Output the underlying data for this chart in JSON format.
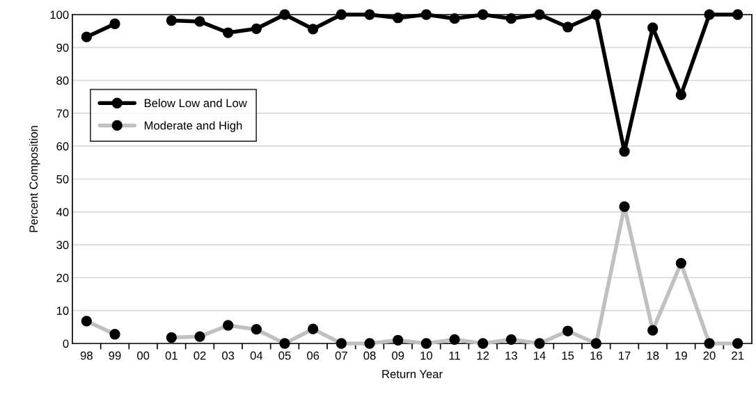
{
  "chart_data": {
    "type": "line",
    "xlabel": "Return Year",
    "ylabel": "Percent Composition",
    "categories": [
      "98",
      "99",
      "00",
      "01",
      "02",
      "03",
      "04",
      "05",
      "06",
      "07",
      "08",
      "09",
      "10",
      "11",
      "12",
      "13",
      "14",
      "15",
      "16",
      "17",
      "18",
      "19",
      "20",
      "21"
    ],
    "series": [
      {
        "name": "Below Low and Low",
        "color": "#000000",
        "values": [
          93.2,
          97.2,
          null,
          98.2,
          97.9,
          94.5,
          95.7,
          100,
          95.6,
          100,
          100,
          99.0,
          100,
          98.8,
          100,
          98.8,
          100,
          96.2,
          100,
          58.4,
          96.0,
          75.6,
          100,
          100
        ]
      },
      {
        "name": "Moderate and High",
        "color": "#c0c0c0",
        "values": [
          6.8,
          2.8,
          null,
          1.8,
          2.1,
          5.5,
          4.3,
          0,
          4.4,
          0,
          0,
          1.0,
          0,
          1.2,
          0,
          1.2,
          0,
          3.8,
          0,
          41.6,
          4.0,
          24.4,
          0,
          0
        ]
      }
    ],
    "ylim": [
      0,
      100
    ],
    "yticks": [
      0,
      10,
      20,
      30,
      40,
      50,
      60,
      70,
      80,
      90,
      100
    ],
    "grid": "y",
    "legend": "left",
    "marker": "circle",
    "line_style": "solid"
  }
}
